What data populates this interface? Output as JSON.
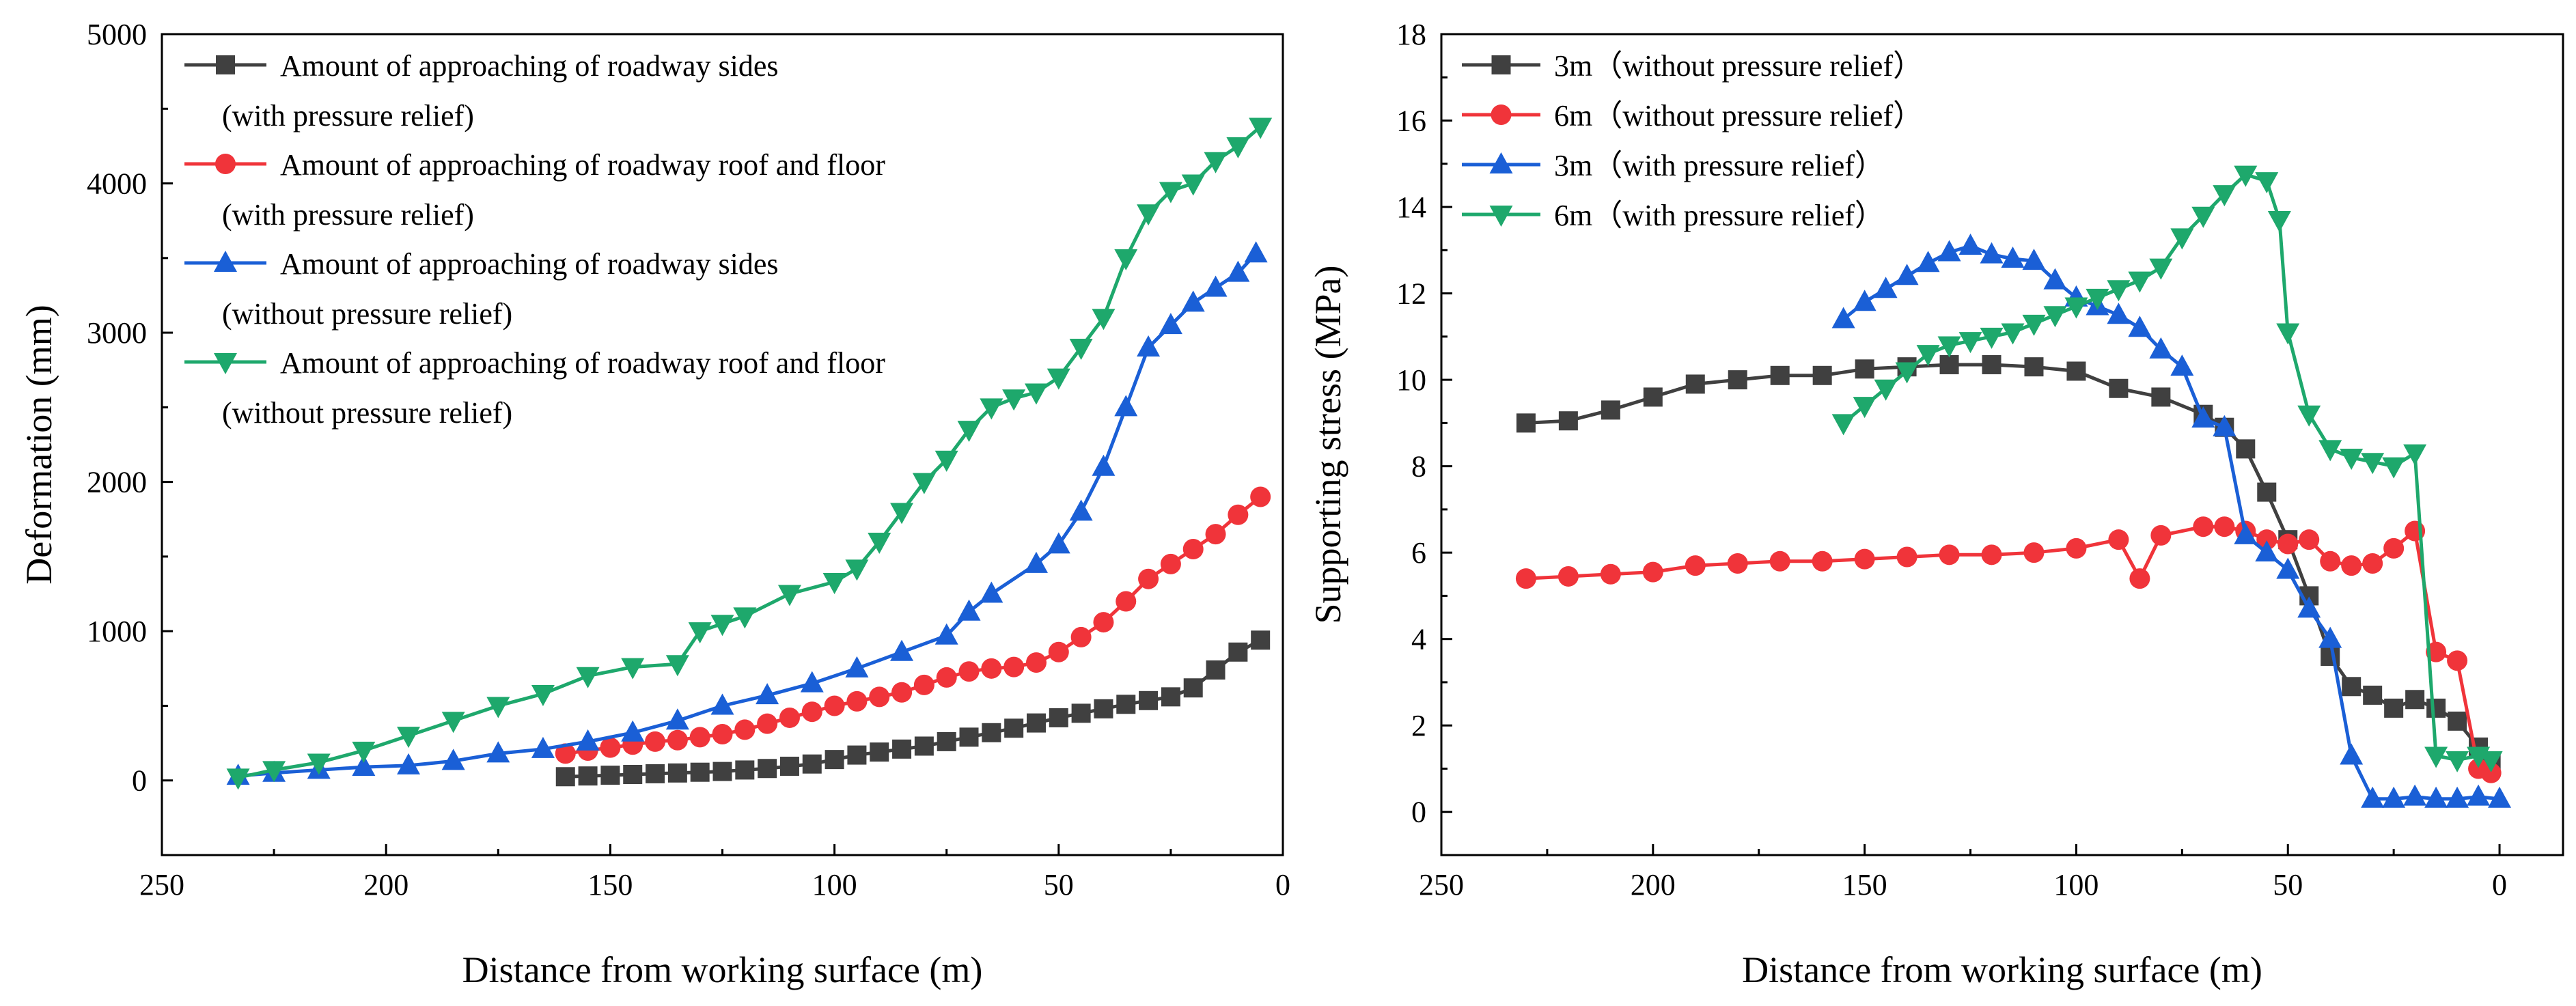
{
  "chart_data": [
    {
      "type": "line",
      "xlabel": "Distance from working surface (m)",
      "ylabel": "Deformation (mm)",
      "xlim": [
        250,
        0
      ],
      "ylim": [
        -500,
        5000
      ],
      "xticks": [
        250,
        200,
        150,
        100,
        50,
        0
      ],
      "yticks": [
        0,
        1000,
        2000,
        3000,
        4000,
        5000
      ],
      "legend_position": "top-left",
      "series": [
        {
          "name": "Amount of approaching of roadway sides",
          "name_line2": "(with pressure relief)",
          "color": "#404040",
          "marker": "square",
          "x": [
            160,
            155,
            150,
            145,
            140,
            135,
            130,
            125,
            120,
            115,
            110,
            105,
            100,
            95,
            90,
            85,
            80,
            75,
            70,
            65,
            60,
            55,
            50,
            45,
            40,
            35,
            30,
            25,
            20,
            15,
            10,
            5
          ],
          "y": [
            25,
            30,
            35,
            40,
            45,
            50,
            55,
            60,
            70,
            80,
            95,
            110,
            140,
            170,
            190,
            210,
            230,
            260,
            290,
            320,
            350,
            385,
            420,
            450,
            480,
            510,
            535,
            560,
            620,
            740,
            860,
            940
          ]
        },
        {
          "name": "Amount of approaching of roadway roof and floor",
          "name_line2": "(with pressure relief)",
          "color": "#f0343a",
          "marker": "circle",
          "x": [
            160,
            155,
            150,
            145,
            140,
            135,
            130,
            125,
            120,
            115,
            110,
            105,
            100,
            95,
            90,
            85,
            80,
            75,
            70,
            65,
            60,
            55,
            50,
            45,
            40,
            35,
            30,
            25,
            20,
            15,
            10,
            5
          ],
          "y": [
            180,
            200,
            220,
            240,
            260,
            270,
            290,
            310,
            340,
            380,
            420,
            460,
            500,
            530,
            560,
            590,
            640,
            690,
            730,
            750,
            760,
            790,
            860,
            960,
            1060,
            1200,
            1350,
            1450,
            1550,
            1650,
            1780,
            1900
          ]
        },
        {
          "name": "Amount of approaching of roadway sides",
          "name_line2": "(without pressure relief)",
          "color": "#1a5fd6",
          "marker": "triangle-up",
          "x": [
            233,
            225,
            215,
            205,
            195,
            185,
            175,
            165,
            155,
            145,
            135,
            125,
            115,
            105,
            95,
            85,
            75,
            70,
            65,
            55,
            50,
            45,
            40,
            35,
            30,
            25,
            20,
            15,
            10,
            6
          ],
          "y": [
            30,
            50,
            70,
            90,
            100,
            130,
            180,
            210,
            260,
            320,
            400,
            500,
            570,
            650,
            750,
            860,
            970,
            1130,
            1250,
            1450,
            1580,
            1800,
            2100,
            2500,
            2900,
            3050,
            3200,
            3300,
            3400,
            3530
          ]
        },
        {
          "name": "Amount of approaching of roadway roof and floor",
          "name_line2": "(without pressure relief)",
          "color": "#1ea86c",
          "marker": "triangle-down",
          "x": [
            233,
            225,
            215,
            205,
            195,
            185,
            175,
            165,
            155,
            145,
            135,
            130,
            125,
            120,
            110,
            100,
            95,
            90,
            85,
            80,
            75,
            70,
            65,
            60,
            55,
            50,
            45,
            40,
            35,
            30,
            25,
            20,
            15,
            10,
            5
          ],
          "y": [
            20,
            70,
            120,
            200,
            300,
            400,
            500,
            580,
            700,
            760,
            780,
            1000,
            1050,
            1100,
            1250,
            1330,
            1420,
            1600,
            1800,
            2000,
            2150,
            2350,
            2500,
            2560,
            2600,
            2700,
            2900,
            3100,
            3500,
            3800,
            3950,
            4000,
            4150,
            4250,
            4380
          ]
        }
      ]
    },
    {
      "type": "line",
      "xlabel": "Distance from working surface (m)",
      "ylabel": "Supporting stress (MPa)",
      "xlim": [
        250,
        -15
      ],
      "ylim": [
        -1,
        18
      ],
      "xticks": [
        250,
        200,
        150,
        100,
        50,
        0
      ],
      "yticks": [
        0,
        2,
        4,
        6,
        8,
        10,
        12,
        14,
        16,
        18
      ],
      "legend_position": "top-left",
      "series": [
        {
          "name": "3m（without pressure relief）",
          "color": "#404040",
          "marker": "square",
          "x": [
            230,
            220,
            210,
            200,
            190,
            180,
            170,
            160,
            150,
            140,
            130,
            120,
            110,
            100,
            90,
            80,
            70,
            65,
            60,
            55,
            50,
            45,
            40,
            35,
            30,
            25,
            20,
            15,
            10,
            5,
            2
          ],
          "y": [
            9.0,
            9.05,
            9.3,
            9.6,
            9.9,
            10.0,
            10.1,
            10.1,
            10.25,
            10.3,
            10.35,
            10.35,
            10.3,
            10.2,
            9.8,
            9.6,
            9.2,
            8.9,
            8.4,
            7.4,
            6.3,
            5.0,
            3.6,
            2.9,
            2.7,
            2.4,
            2.6,
            2.4,
            2.1,
            1.5,
            1.1
          ]
        },
        {
          "name": "6m（without pressure relief）",
          "color": "#f0343a",
          "marker": "circle",
          "x": [
            230,
            220,
            210,
            200,
            190,
            180,
            170,
            160,
            150,
            140,
            130,
            120,
            110,
            100,
            90,
            85,
            80,
            70,
            65,
            60,
            55,
            50,
            45,
            40,
            35,
            30,
            25,
            20,
            15,
            10,
            5,
            2
          ],
          "y": [
            5.4,
            5.45,
            5.5,
            5.55,
            5.7,
            5.75,
            5.8,
            5.8,
            5.85,
            5.9,
            5.95,
            5.95,
            6.0,
            6.1,
            6.3,
            5.4,
            6.4,
            6.6,
            6.6,
            6.5,
            6.3,
            6.2,
            6.3,
            5.8,
            5.7,
            5.75,
            6.1,
            6.5,
            3.7,
            3.5,
            1.0,
            0.9
          ]
        },
        {
          "name": "3m（with pressure relief）",
          "color": "#1a5fd6",
          "marker": "triangle-up",
          "x": [
            155,
            150,
            145,
            140,
            135,
            130,
            125,
            120,
            115,
            110,
            105,
            100,
            95,
            90,
            85,
            80,
            75,
            70,
            65,
            60,
            55,
            50,
            45,
            40,
            35,
            30,
            25,
            20,
            15,
            10,
            5,
            0
          ],
          "y": [
            11.4,
            11.8,
            12.1,
            12.4,
            12.7,
            12.95,
            13.1,
            12.9,
            12.8,
            12.75,
            12.3,
            11.9,
            11.7,
            11.5,
            11.2,
            10.7,
            10.3,
            9.1,
            8.9,
            6.4,
            6.0,
            5.6,
            4.7,
            4.0,
            1.3,
            0.3,
            0.3,
            0.35,
            0.3,
            0.3,
            0.35,
            0.3
          ]
        },
        {
          "name": "6m（with pressure relief）",
          "color": "#1ea86c",
          "marker": "triangle-down",
          "x": [
            155,
            150,
            145,
            140,
            135,
            130,
            125,
            120,
            115,
            110,
            105,
            100,
            95,
            90,
            85,
            80,
            75,
            70,
            65,
            60,
            55,
            52,
            50,
            45,
            40,
            35,
            30,
            25,
            20,
            15,
            10,
            5,
            2
          ],
          "y": [
            9.0,
            9.4,
            9.8,
            10.2,
            10.6,
            10.8,
            10.9,
            11.0,
            11.1,
            11.3,
            11.5,
            11.7,
            11.9,
            12.1,
            12.3,
            12.6,
            13.3,
            13.8,
            14.3,
            14.75,
            14.6,
            13.7,
            11.1,
            9.2,
            8.4,
            8.2,
            8.1,
            8.0,
            8.3,
            1.3,
            1.2,
            1.3,
            1.2
          ]
        }
      ]
    }
  ]
}
